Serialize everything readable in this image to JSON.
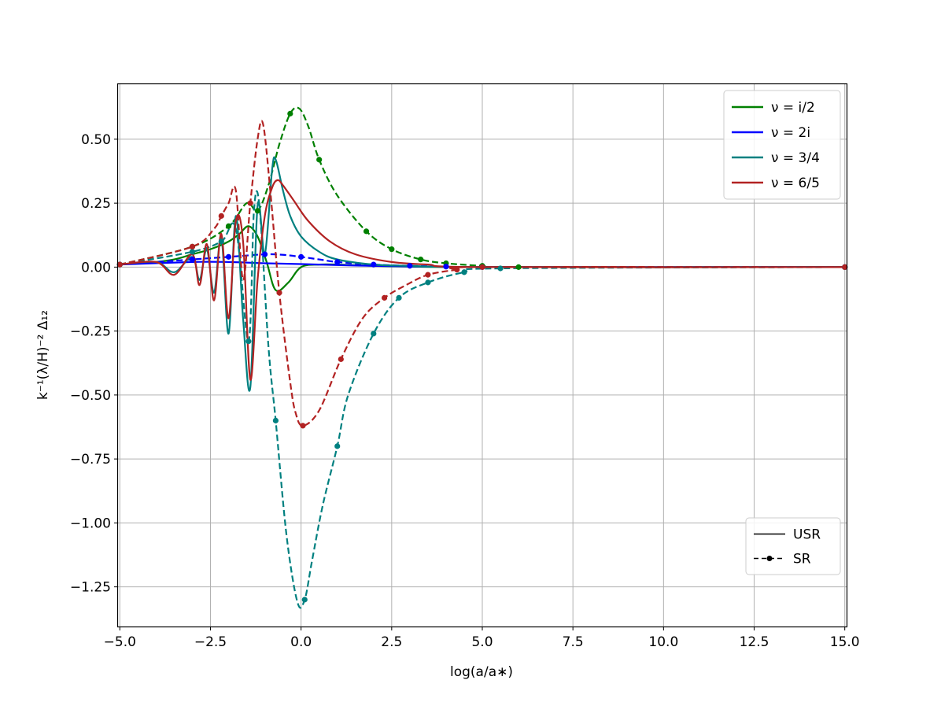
{
  "chart_data": {
    "type": "line",
    "xlabel": "log(a/a∗)",
    "ylabel": "k⁻¹(λ/H)⁻² Δ₁₂",
    "xlim": [
      -5.05,
      15.05
    ],
    "ylim": [
      -1.405,
      0.715
    ],
    "x_ticks": [
      -5.0,
      -2.5,
      0.0,
      2.5,
      5.0,
      7.5,
      10.0,
      12.5,
      15.0
    ],
    "x_tick_labels": [
      "−5.0",
      "−2.5",
      "0.0",
      "2.5",
      "5.0",
      "7.5",
      "10.0",
      "12.5",
      "15.0"
    ],
    "y_ticks": [
      0.5,
      0.25,
      0.0,
      -0.25,
      -0.5,
      -0.75,
      -1.0,
      -1.25
    ],
    "y_tick_labels": [
      "0.50",
      "0.25",
      "0.00",
      "−0.25",
      "−0.50",
      "−0.75",
      "−1.00",
      "−1.25"
    ],
    "grid": true,
    "legend_series": {
      "placement": "top-right",
      "entries": [
        {
          "label": "ν = i/2",
          "color": "#008000"
        },
        {
          "label": "ν = 2i",
          "color": "#0000ff"
        },
        {
          "label": "ν = 3/4",
          "color": "#008080"
        },
        {
          "label": "ν = 6/5",
          "color": "#b22222"
        }
      ]
    },
    "legend_style": {
      "placement": "bottom-right",
      "entries": [
        {
          "label": "USR",
          "style": "solid"
        },
        {
          "label": "SR",
          "style": "dashed-dot-marker"
        }
      ]
    },
    "series": [
      {
        "name": "ν = i/2",
        "style": "USR",
        "color": "#008000",
        "x": [
          -5,
          -4,
          -3.5,
          -3,
          -2.5,
          -2,
          -1.7,
          -1.45,
          -1.2,
          -0.95,
          -0.7,
          -0.35,
          0,
          0.5,
          1,
          2,
          3,
          5,
          15
        ],
        "y": [
          0.01,
          0.02,
          0.03,
          0.05,
          0.07,
          0.1,
          0.13,
          0.16,
          0.12,
          0.02,
          -0.09,
          -0.06,
          0.0,
          0.01,
          0.01,
          0.005,
          0.002,
          0.0,
          0.0
        ]
      },
      {
        "name": "ν = i/2",
        "style": "SR",
        "color": "#008000",
        "x": [
          -5,
          -3,
          -2,
          -1.5,
          -1.2,
          -0.9,
          -0.6,
          -0.3,
          -0.05,
          0.2,
          0.5,
          1,
          1.8,
          2.5,
          3.3,
          4,
          5,
          6,
          15
        ],
        "y": [
          0.01,
          0.08,
          0.16,
          0.25,
          0.22,
          0.32,
          0.48,
          0.6,
          0.62,
          0.55,
          0.42,
          0.28,
          0.14,
          0.07,
          0.03,
          0.015,
          0.005,
          0.0,
          0.0
        ]
      },
      {
        "name": "ν = 2i",
        "style": "USR",
        "color": "#0000ff",
        "x": [
          -5,
          -3,
          -2,
          -1,
          0,
          1,
          2,
          3,
          4,
          5,
          15
        ],
        "y": [
          0.01,
          0.02,
          0.02,
          0.015,
          0.012,
          0.008,
          0.005,
          0.003,
          0.001,
          0.0,
          0.0
        ]
      },
      {
        "name": "ν = 2i",
        "style": "SR",
        "color": "#0000ff",
        "x": [
          -5,
          -3,
          -2,
          -1,
          -0.5,
          0,
          0.5,
          1,
          2,
          3,
          4,
          5,
          15
        ],
        "y": [
          0.01,
          0.03,
          0.04,
          0.05,
          0.048,
          0.04,
          0.03,
          0.02,
          0.01,
          0.005,
          0.002,
          0.0,
          0.0
        ]
      },
      {
        "name": "ν = 3/4",
        "style": "USR",
        "color": "#008080",
        "x": [
          -5,
          -4,
          -3.5,
          -3,
          -2.8,
          -2.6,
          -2.4,
          -2.2,
          -2.0,
          -1.8,
          -1.6,
          -1.4,
          -1.2,
          -1.0,
          -0.8,
          -0.7,
          -0.5,
          -0.3,
          0,
          0.5,
          1,
          2,
          3,
          5,
          15
        ],
        "y": [
          0.01,
          0.02,
          -0.02,
          0.04,
          -0.05,
          0.07,
          -0.1,
          0.12,
          -0.26,
          0.2,
          -0.2,
          -0.47,
          0.24,
          0.05,
          0.38,
          0.42,
          0.3,
          0.2,
          0.12,
          0.06,
          0.03,
          0.01,
          0.005,
          0.0,
          0.0
        ]
      },
      {
        "name": "ν = 3/4",
        "style": "SR",
        "color": "#008080",
        "x": [
          -5,
          -3,
          -2.2,
          -1.8,
          -1.45,
          -1.3,
          -1.15,
          -0.9,
          -0.7,
          -0.4,
          -0.1,
          0.1,
          0.3,
          0.6,
          1,
          1.3,
          2,
          2.7,
          3.5,
          4.5,
          5.5,
          15
        ],
        "y": [
          0.01,
          0.06,
          0.1,
          0.15,
          -0.29,
          0.22,
          0.24,
          -0.31,
          -0.6,
          -1.05,
          -1.31,
          -1.3,
          -1.15,
          -0.93,
          -0.7,
          -0.5,
          -0.26,
          -0.12,
          -0.06,
          -0.02,
          -0.005,
          0.0
        ]
      },
      {
        "name": "ν = 6/5",
        "style": "USR",
        "color": "#b22222",
        "x": [
          -5,
          -4,
          -3.5,
          -3,
          -2.8,
          -2.6,
          -2.4,
          -2.2,
          -2.0,
          -1.8,
          -1.6,
          -1.4,
          -1.2,
          -1.0,
          -0.8,
          -0.65,
          -0.5,
          -0.2,
          0.2,
          0.8,
          1.5,
          2.5,
          3.5,
          5,
          15
        ],
        "y": [
          0.01,
          0.02,
          -0.03,
          0.05,
          -0.07,
          0.09,
          -0.13,
          0.13,
          -0.2,
          0.18,
          0.1,
          -0.44,
          -0.05,
          0.2,
          0.31,
          0.34,
          0.32,
          0.26,
          0.18,
          0.1,
          0.05,
          0.02,
          0.01,
          0.0,
          0.0
        ]
      },
      {
        "name": "ν = 6/5",
        "style": "SR",
        "color": "#b22222",
        "x": [
          -5,
          -3,
          -2.4,
          -2.2,
          -2.0,
          -1.8,
          -1.6,
          -1.4,
          -1.2,
          -1.05,
          -0.85,
          -0.6,
          -0.3,
          -0.15,
          0.05,
          0.5,
          1.1,
          1.7,
          2.3,
          2.9,
          3.5,
          4.3,
          5,
          15
        ],
        "y": [
          0.01,
          0.08,
          0.15,
          0.2,
          0.25,
          0.3,
          -0.05,
          0.25,
          0.5,
          0.56,
          0.3,
          -0.1,
          -0.45,
          -0.57,
          -0.62,
          -0.56,
          -0.36,
          -0.2,
          -0.12,
          -0.07,
          -0.03,
          -0.01,
          0.0,
          0.0
        ]
      }
    ]
  }
}
